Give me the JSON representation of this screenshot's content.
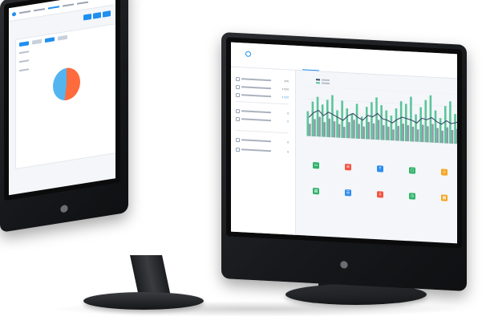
{
  "left_screen": {
    "chart_data": {
      "type": "pie",
      "values": [
        52,
        48
      ],
      "colors": [
        "#ff6b3d",
        "#53b4f0"
      ]
    }
  },
  "right_screen": {
    "nav": [
      {
        "label": "",
        "active": true
      },
      {
        "label": "",
        "active": false
      },
      {
        "label": "",
        "active": false
      },
      {
        "label": "",
        "active": false
      },
      {
        "label": "",
        "active": false
      },
      {
        "label": "",
        "active": false
      },
      {
        "label": "",
        "active": false
      }
    ],
    "sidebar_values": [
      "376",
      "1,550",
      "1,520",
      "0",
      "0",
      "0",
      "0"
    ],
    "chart_data": {
      "type": "bar",
      "series": [
        {
          "values": [
            20,
            28,
            32,
            26,
            30,
            34,
            22,
            30,
            24,
            20,
            28,
            18,
            26,
            30,
            34,
            28,
            24,
            20,
            26,
            32,
            30,
            36,
            22,
            28,
            34,
            38,
            26,
            20,
            30,
            34,
            24,
            32
          ]
        },
        {
          "values": [
            10,
            14,
            16,
            12,
            15,
            13,
            11,
            9,
            13,
            15,
            12,
            10,
            14,
            13,
            16,
            12,
            11,
            9,
            12,
            14,
            13,
            12,
            10,
            14,
            13,
            15,
            12,
            10,
            13,
            11,
            12,
            14
          ]
        }
      ],
      "colors": [
        "#5bc49a",
        "#8f9aa7"
      ],
      "line_color": "#3a4a66",
      "ylim": [
        0,
        40
      ]
    },
    "modules": [
      {
        "icon": "folder-icon",
        "color": "#2fb36a"
      },
      {
        "icon": "document-icon",
        "color": "#f25745"
      },
      {
        "icon": "upload-icon",
        "color": "#2d8cf0"
      },
      {
        "icon": "clipboard-icon",
        "color": "#2fb36a"
      },
      {
        "icon": "cart-icon",
        "color": "#f5a623"
      },
      {
        "icon": "chart-icon",
        "color": "#2fb36a"
      },
      {
        "icon": "list-icon",
        "color": "#2d8cf0"
      },
      {
        "icon": "download-icon",
        "color": "#f25745"
      },
      {
        "icon": "clock-icon",
        "color": "#2fb36a"
      },
      {
        "icon": "calendar-icon",
        "color": "#f5a623"
      }
    ]
  }
}
